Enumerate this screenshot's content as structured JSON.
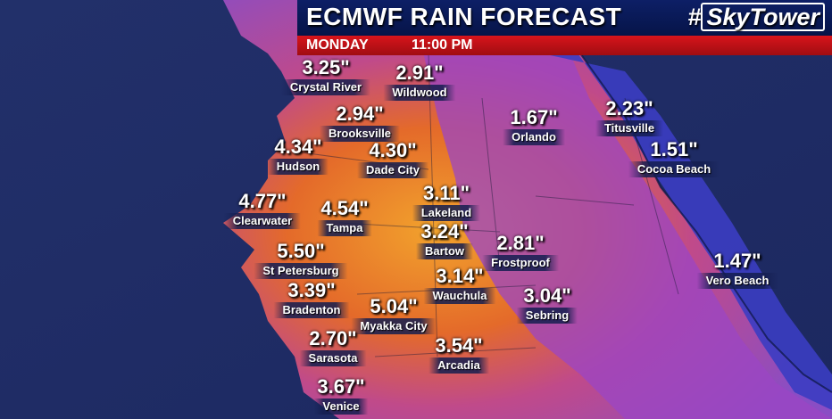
{
  "header": {
    "title": "ECMWF RAIN FORECAST",
    "logo_hash": "#",
    "logo_text": "SkyTower",
    "day": "MONDAY",
    "time": "11:00 PM"
  },
  "legend_colors": {
    "ocean": "#24336f",
    "low": "#3b3cc0",
    "mid": "#9a4dc0",
    "high": "#e0622a",
    "highest": "#f0a530"
  },
  "stations": [
    {
      "name": "Crystal River",
      "value": "3.25\""
    },
    {
      "name": "Wildwood",
      "value": "2.91\""
    },
    {
      "name": "Brooksville",
      "value": "2.94\""
    },
    {
      "name": "Hudson",
      "value": "4.34\""
    },
    {
      "name": "Dade City",
      "value": "4.30\""
    },
    {
      "name": "Orlando",
      "value": "1.67\""
    },
    {
      "name": "Titusville",
      "value": "2.23\""
    },
    {
      "name": "Cocoa Beach",
      "value": "1.51\""
    },
    {
      "name": "Clearwater",
      "value": "4.77\""
    },
    {
      "name": "Tampa",
      "value": "4.54\""
    },
    {
      "name": "Lakeland",
      "value": "3.11\""
    },
    {
      "name": "Bartow",
      "value": "3.24\""
    },
    {
      "name": "Frostproof",
      "value": "2.81\""
    },
    {
      "name": "St Petersburg",
      "value": "5.50\""
    },
    {
      "name": "Vero Beach",
      "value": "1.47\""
    },
    {
      "name": "Bradenton",
      "value": "3.39\""
    },
    {
      "name": "Wauchula",
      "value": "3.14\""
    },
    {
      "name": "Myakka City",
      "value": "5.04\""
    },
    {
      "name": "Sebring",
      "value": "3.04\""
    },
    {
      "name": "Sarasota",
      "value": "2.70\""
    },
    {
      "name": "Arcadia",
      "value": "3.54\""
    },
    {
      "name": "Venice",
      "value": "3.67\""
    }
  ]
}
